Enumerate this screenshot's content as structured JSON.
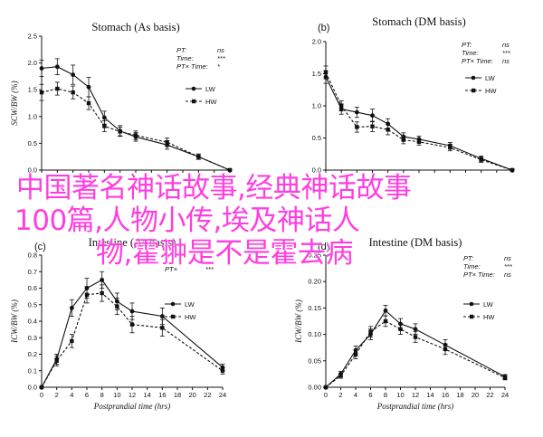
{
  "overlay_text": {
    "line1": "中国著名神话故事,经典神话故事",
    "line2": "100篇,人物小传,埃及神话人",
    "line3": "物,霍翀是不是霍去病"
  },
  "colors": {
    "line": "#111111",
    "overlay": "#ff3ee0"
  },
  "chart_data": [
    {
      "type": "line",
      "panel_letter": "",
      "title": "Stomach (As basis)",
      "xlabel": "",
      "ylabel": "SCW/BW (%)",
      "ylim": [
        0,
        2.5
      ],
      "yticks": [
        "0.0",
        "0.5",
        "1.0",
        "1.5",
        "2.0",
        "2.5"
      ],
      "stats": [
        {
          "label": "PT:",
          "value": "ns"
        },
        {
          "label": "Time:",
          "value": "***"
        },
        {
          "label": "PT× Time:",
          "value": "*"
        }
      ],
      "series": [
        {
          "name": "LW",
          "style": "solid",
          "marker": "circle",
          "x": [
            0,
            2,
            4,
            6,
            8,
            10,
            12,
            16,
            20,
            24
          ],
          "y": [
            1.9,
            1.93,
            1.78,
            1.55,
            0.98,
            0.73,
            0.62,
            0.47,
            0.25,
            0.0
          ],
          "err": [
            0.15,
            0.15,
            0.18,
            0.18,
            0.12,
            0.1,
            0.08,
            0.08,
            0.05,
            0.02
          ]
        },
        {
          "name": "HW",
          "style": "dashed",
          "marker": "square",
          "x": [
            0,
            2,
            4,
            6,
            8,
            10,
            12,
            16,
            20,
            24
          ],
          "y": [
            1.45,
            1.52,
            1.45,
            1.25,
            0.82,
            0.72,
            0.65,
            0.52,
            0.25,
            0.0
          ],
          "err": [
            0.15,
            0.12,
            0.12,
            0.12,
            0.1,
            0.08,
            0.08,
            0.08,
            0.05,
            0.02
          ]
        }
      ]
    },
    {
      "type": "line",
      "panel_letter": "b",
      "title": "Stomach (DM basis)",
      "xlabel": "",
      "ylabel": "",
      "ylim": [
        0,
        2.0
      ],
      "yticks": [
        "0.0",
        "0.5",
        "1.0",
        "1.5",
        "2.0"
      ],
      "stats": [
        {
          "label": "PT:",
          "value": "ns"
        },
        {
          "label": "Time:",
          "value": "***"
        },
        {
          "label": "PT× Time:",
          "value": "ns"
        }
      ],
      "series": [
        {
          "name": "LW",
          "style": "solid",
          "marker": "circle",
          "x": [
            0,
            2,
            4,
            6,
            8,
            10,
            12,
            16,
            20,
            24
          ],
          "y": [
            1.45,
            0.95,
            0.9,
            0.85,
            0.72,
            0.52,
            0.48,
            0.38,
            0.18,
            0.0
          ],
          "err": [
            0.1,
            0.08,
            0.08,
            0.1,
            0.08,
            0.06,
            0.05,
            0.05,
            0.04,
            0.02
          ]
        },
        {
          "name": "HW",
          "style": "dashed",
          "marker": "square",
          "x": [
            0,
            2,
            4,
            6,
            8,
            10,
            12,
            16,
            20,
            24
          ],
          "y": [
            1.52,
            1.0,
            0.67,
            0.68,
            0.63,
            0.47,
            0.44,
            0.35,
            0.16,
            0.0
          ],
          "err": [
            0.1,
            0.08,
            0.08,
            0.08,
            0.08,
            0.06,
            0.05,
            0.05,
            0.04,
            0.02
          ]
        }
      ]
    },
    {
      "type": "line",
      "panel_letter": "c",
      "title": "Intestine (As basis)",
      "xlabel": "Postprandial time (hrs)",
      "ylabel": "ICW/BW (%)",
      "ylim": [
        0,
        0.8
      ],
      "yticks": [
        "0.0",
        "0.1",
        "0.2",
        "0.3",
        "0.4",
        "0.5",
        "0.6",
        "0.7",
        "0.8"
      ],
      "xticks": [
        "0",
        "2",
        "4",
        "6",
        "8",
        "10",
        "12",
        "14",
        "16",
        "18",
        "20",
        "22",
        "24"
      ],
      "stats": [
        {
          "label": "PT×",
          "value": "***"
        }
      ],
      "series": [
        {
          "name": "LW",
          "style": "solid",
          "marker": "circle",
          "x": [
            0,
            2,
            4,
            6,
            8,
            10,
            12,
            16,
            24
          ],
          "y": [
            0.0,
            0.17,
            0.48,
            0.6,
            0.65,
            0.52,
            0.46,
            0.43,
            0.12
          ],
          "err": [
            0.0,
            0.03,
            0.05,
            0.06,
            0.05,
            0.05,
            0.05,
            0.05,
            0.02
          ]
        },
        {
          "name": "HW",
          "style": "dashed",
          "marker": "square",
          "x": [
            0,
            2,
            4,
            6,
            8,
            10,
            12,
            16,
            24
          ],
          "y": [
            0.0,
            0.16,
            0.28,
            0.56,
            0.57,
            0.49,
            0.38,
            0.36,
            0.1
          ],
          "err": [
            0.0,
            0.03,
            0.04,
            0.05,
            0.05,
            0.05,
            0.05,
            0.05,
            0.02
          ]
        }
      ]
    },
    {
      "type": "line",
      "panel_letter": "d",
      "title": "Intestine (DM basis)",
      "xlabel": "Postprandial time (hrs)",
      "ylabel": "ICW/BW (%)",
      "ylim": [
        0,
        0.25
      ],
      "yticks": [
        "0.00",
        "0.05",
        "0.10",
        "0.15",
        "0.20",
        "0.25"
      ],
      "xticks": [
        "0",
        "2",
        "4",
        "6",
        "8",
        "10",
        "12",
        "14",
        "16",
        "18",
        "20",
        "22",
        "24"
      ],
      "stats": [
        {
          "label": "PT:",
          "value": "ns"
        },
        {
          "label": "Time:",
          "value": "***"
        },
        {
          "label": "PT× Time:",
          "value": "ns"
        }
      ],
      "series": [
        {
          "name": "LW",
          "style": "solid",
          "marker": "circle",
          "x": [
            0,
            2,
            4,
            6,
            8,
            10,
            12,
            16,
            24
          ],
          "y": [
            0.0,
            0.025,
            0.07,
            0.1,
            0.145,
            0.12,
            0.11,
            0.08,
            0.02
          ],
          "err": [
            0.0,
            0.005,
            0.008,
            0.01,
            0.01,
            0.01,
            0.01,
            0.01,
            0.004
          ]
        },
        {
          "name": "HW",
          "style": "dashed",
          "marker": "square",
          "x": [
            0,
            2,
            4,
            6,
            8,
            10,
            12,
            16,
            24
          ],
          "y": [
            0.0,
            0.022,
            0.062,
            0.105,
            0.125,
            0.11,
            0.095,
            0.072,
            0.018
          ],
          "err": [
            0.0,
            0.005,
            0.008,
            0.01,
            0.01,
            0.01,
            0.01,
            0.01,
            0.004
          ]
        }
      ]
    }
  ]
}
